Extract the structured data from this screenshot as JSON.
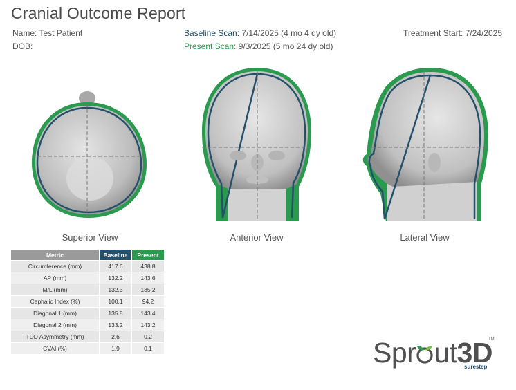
{
  "header": {
    "title": "Cranial Outcome Report",
    "name": "Name: Test Patient",
    "dob": "DOB:",
    "baseline_label": "Baseline Scan:",
    "baseline_value": "7/14/2025 (4 mo 4 dy old)",
    "present_label": "Present Scan:",
    "present_value": "9/3/2025 (5 mo 24 dy old)",
    "treatment_start": "Treatment Start: 7/24/2025"
  },
  "views": {
    "superior": "Superior View",
    "anterior": "Anterior View",
    "lateral": "Lateral View"
  },
  "colors": {
    "baseline": "#24506b",
    "present": "#2a9a4e",
    "head": "#c8c8c8"
  },
  "table": {
    "headers": [
      "Metric",
      "Baseline",
      "Present"
    ],
    "rows": [
      {
        "metric": "Circumference (mm)",
        "baseline": "417.6",
        "present": "438.8"
      },
      {
        "metric": "AP (mm)",
        "baseline": "132.2",
        "present": "143.6"
      },
      {
        "metric": "M/L (mm)",
        "baseline": "132.3",
        "present": "135.2"
      },
      {
        "metric": "Cephalic Index (%)",
        "baseline": "100.1",
        "present": "94.2"
      },
      {
        "metric": "Diagonal 1 (mm)",
        "baseline": "135.8",
        "present": "143.4"
      },
      {
        "metric": "Diagonal 2 (mm)",
        "baseline": "133.2",
        "present": "143.2"
      },
      {
        "metric": "TDD Asymmetry (mm)",
        "baseline": "2.6",
        "present": "0.2"
      },
      {
        "metric": "CVAI (%)",
        "baseline": "1.9",
        "present": "0.1"
      }
    ]
  },
  "logo": {
    "brand_a": "Spr",
    "brand_b": "ut",
    "brand_c": "3D",
    "tm": "TM",
    "sub": "surestep"
  }
}
